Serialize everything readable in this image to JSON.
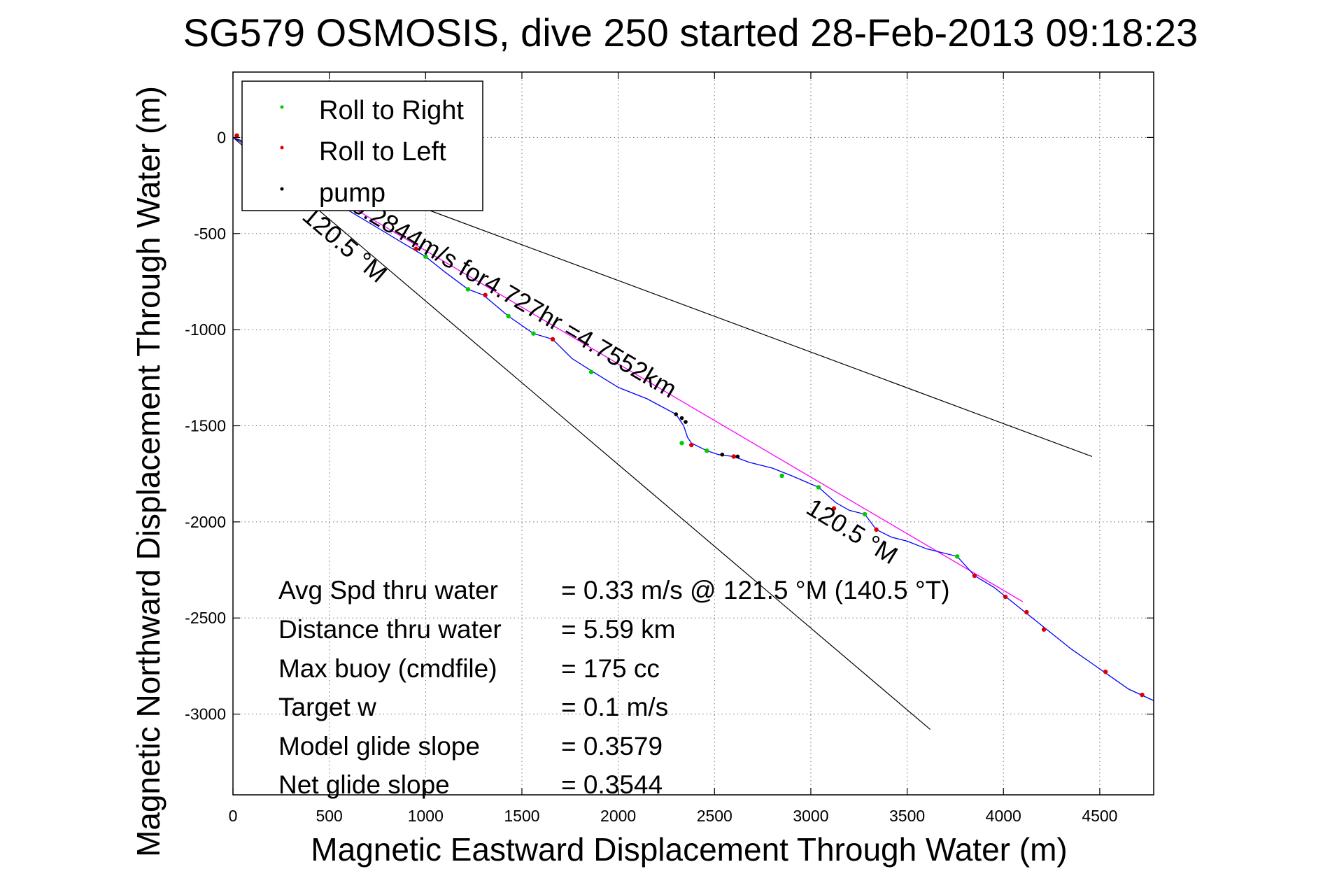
{
  "chart_data": {
    "type": "line",
    "title": "SG579 OSMOSIS, dive 250 started 28-Feb-2013 09:18:23",
    "xlabel": "Magnetic Eastward Displacement Through Water (m)",
    "ylabel": "Magnetic Northward Displacement Through Water (m)",
    "xlim": [
      0,
      4780
    ],
    "ylim": [
      -3420,
      340
    ],
    "xticks": [
      0,
      500,
      1000,
      1500,
      2000,
      2500,
      3000,
      3500,
      4000,
      4500
    ],
    "yticks": [
      0,
      -500,
      -1000,
      -1500,
      -2000,
      -2500,
      -3000
    ],
    "grid": true,
    "legend_position": "top-left",
    "legend": [
      {
        "label": "Roll to Right",
        "color": "#00cc00"
      },
      {
        "label": "Roll to Left",
        "color": "#dd0000"
      },
      {
        "label": "pump",
        "color": "#000000"
      }
    ],
    "track": {
      "color": "#0000ff",
      "x": [
        0,
        150,
        300,
        450,
        600,
        750,
        900,
        1000,
        1100,
        1220,
        1300,
        1430,
        1560,
        1660,
        1760,
        1870,
        2000,
        2150,
        2300,
        2340,
        2360,
        2380,
        2460,
        2520,
        2600,
        2680,
        2800,
        2900,
        3040,
        3130,
        3200,
        3280,
        3340,
        3420,
        3500,
        3600,
        3760,
        3850,
        3950,
        4050,
        4150,
        4250,
        4350,
        4450,
        4550,
        4650,
        4780
      ],
      "y": [
        0,
        -85,
        -180,
        -280,
        -380,
        -470,
        -560,
        -620,
        -700,
        -790,
        -820,
        -930,
        -1020,
        -1050,
        -1150,
        -1220,
        -1300,
        -1360,
        -1440,
        -1500,
        -1560,
        -1590,
        -1630,
        -1650,
        -1660,
        -1690,
        -1720,
        -1760,
        -1820,
        -1900,
        -1940,
        -1960,
        -2040,
        -2080,
        -2100,
        -2140,
        -2180,
        -2280,
        -2340,
        -2420,
        -2500,
        -2580,
        -2660,
        -2730,
        -2800,
        -2870,
        -2930
      ]
    },
    "roll_right": {
      "color": "#00cc00",
      "x": [
        1000,
        1220,
        1430,
        1560,
        1860,
        2330,
        2460,
        2850,
        3040,
        3280,
        3760
      ],
      "y": [
        -620,
        -790,
        -930,
        -1020,
        -1220,
        -1590,
        -1630,
        -1760,
        -1820,
        -1960,
        -2180
      ]
    },
    "roll_left": {
      "color": "#dd0000",
      "x": [
        20,
        950,
        1310,
        1660,
        2380,
        2600,
        3120,
        3340,
        3850,
        4010,
        4120,
        4210,
        4530,
        4720
      ],
      "y": [
        10,
        -580,
        -820,
        -1050,
        -1600,
        -1660,
        -1930,
        -2040,
        -2280,
        -2390,
        -2470,
        -2560,
        -2780,
        -2900
      ]
    },
    "pump": {
      "color": "#000000",
      "x": [
        2300,
        2330,
        2350,
        2540,
        2620
      ],
      "y": [
        -1440,
        -1460,
        -1480,
        -1650,
        -1660
      ]
    },
    "avg_line": {
      "color": "#ff00ff",
      "x": [
        0,
        4100
      ],
      "y": [
        0,
        -2415
      ]
    },
    "envelope_lines": {
      "color": "#000000",
      "upper": {
        "x": [
          0,
          4460
        ],
        "y": [
          0,
          -1660
        ]
      },
      "lower": {
        "x": [
          0,
          3620
        ],
        "y": [
          0,
          -3080
        ]
      }
    },
    "annotations": [
      {
        "text": "0.2844m/s for4.727hr =4.7552km"
      },
      {
        "text": "120.5 °M"
      },
      {
        "text": "120.5 °M"
      }
    ],
    "stats": [
      {
        "label": "Avg Spd thru water",
        "value": "=  0.33 m/s @ 121.5 °M (140.5 °T)"
      },
      {
        "label": "Distance thru water",
        "value": "=  5.59 km"
      },
      {
        "label": "Max buoy (cmdfile)",
        "value": "= 175 cc"
      },
      {
        "label": "Target w",
        "value": "= 0.1 m/s"
      },
      {
        "label": "Model glide slope",
        "value": "= 0.3579"
      },
      {
        "label": "Net glide slope",
        "value": "= 0.3544"
      }
    ]
  }
}
